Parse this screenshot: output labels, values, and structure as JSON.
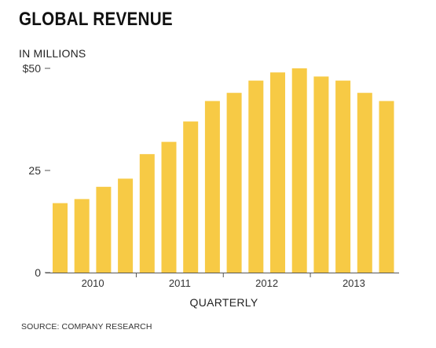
{
  "chart_data": {
    "type": "bar",
    "title": "GLOBAL REVENUE",
    "subtitle": "IN MILLIONS",
    "xlabel": "QUARTERLY",
    "ylabel": "",
    "source": "SOURCE: COMPANY RESEARCH",
    "ylim": [
      0,
      50
    ],
    "y_ticks": [
      {
        "value": 0,
        "label": "0"
      },
      {
        "value": 25,
        "label": "25"
      },
      {
        "value": 50,
        "label": "$50"
      }
    ],
    "year_labels": [
      {
        "label": "2010",
        "start_index": 0
      },
      {
        "label": "2011",
        "start_index": 4
      },
      {
        "label": "2012",
        "start_index": 8
      },
      {
        "label": "2013",
        "start_index": 12
      }
    ],
    "values": [
      17,
      18,
      21,
      23,
      29,
      32,
      37,
      42,
      44,
      47,
      49,
      50,
      48,
      47,
      44,
      42
    ],
    "bar_color": "#F7CA45",
    "grid": false
  }
}
